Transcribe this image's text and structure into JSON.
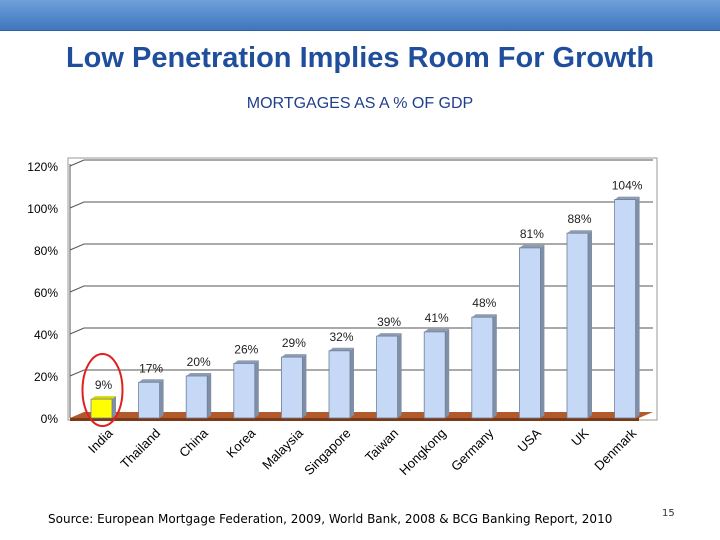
{
  "slide": {
    "title": "Low Penetration Implies Room For Growth",
    "source": "Source: European Mortgage Federation, 2009, World Bank, 2008 & BCG Banking Report, 2010",
    "page_number": "15"
  },
  "colors": {
    "header_bar": "#4a80c8",
    "title": "#1f4e9c",
    "bar_fill": "#c5d8f5",
    "bar_side": "#7f8fa6",
    "bar_highlight": "#ffff00",
    "floor": "#b25a2b",
    "highlight_circle": "#e02020"
  },
  "chart_data": {
    "type": "bar",
    "title": "MORTGAGES AS A % OF GDP",
    "categories": [
      "India",
      "Thailand",
      "China",
      "Korea",
      "Malaysia",
      "Singapore",
      "Taiwan",
      "Hongkong",
      "Germany",
      "USA",
      "UK",
      "Denmark"
    ],
    "values": [
      9,
      17,
      20,
      26,
      29,
      32,
      39,
      41,
      48,
      81,
      88,
      104
    ],
    "data_labels": [
      "9%",
      "17%",
      "20%",
      "26%",
      "29%",
      "32%",
      "39%",
      "41%",
      "48%",
      "81%",
      "88%",
      "104%"
    ],
    "ylim": [
      0,
      120
    ],
    "yticks": [
      0,
      20,
      40,
      60,
      80,
      100,
      120
    ],
    "ytick_labels": [
      "0%",
      "20%",
      "40%",
      "60%",
      "80%",
      "100%",
      "120%"
    ],
    "grid": true,
    "highlighted_category": "India",
    "xlabel": "",
    "ylabel": ""
  }
}
